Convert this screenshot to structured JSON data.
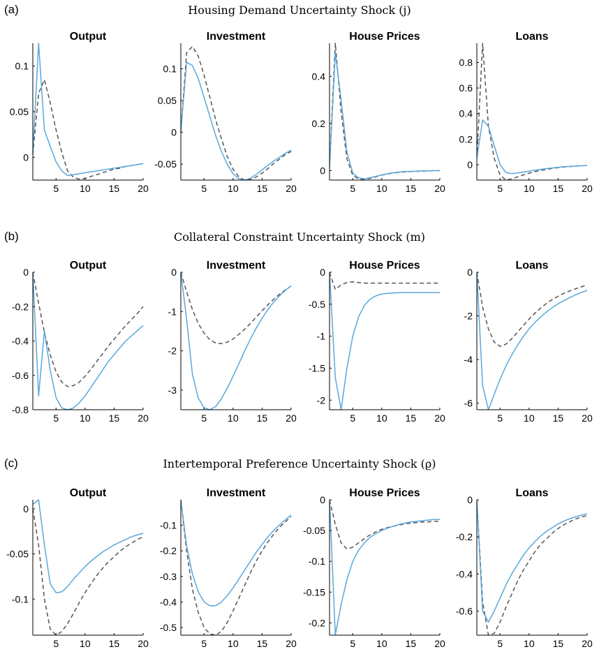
{
  "rows": [
    {
      "letter": "(a)",
      "title": "Housing Demand Uncertainty Shock (j)"
    },
    {
      "letter": "(b)",
      "title": "Collateral Constraint Uncertainty Shock (m)"
    },
    {
      "letter": "(c)",
      "title": "Intertemporal Preference Uncertainty Shock (ϱ)"
    }
  ],
  "colors": {
    "solid": "#5aa7da",
    "dashed": "#555555",
    "axis": "#000000"
  },
  "chart_data": [
    {
      "type": "line",
      "title": "Output",
      "xlim": [
        1,
        20
      ],
      "ylim": [
        -0.025,
        0.125
      ],
      "xticks": [
        5,
        10,
        15,
        20
      ],
      "yticks": [
        0,
        0.05,
        0.1
      ],
      "ytick_labels": [
        "0",
        "0.05",
        "0.1"
      ],
      "x": [
        1,
        2,
        3,
        4,
        5,
        6,
        7,
        8,
        9,
        10,
        11,
        12,
        13,
        14,
        15,
        16,
        17,
        18,
        19,
        20
      ],
      "series": [
        {
          "style": "solid",
          "values": [
            0.005,
            0.125,
            0.03,
            0.012,
            -0.005,
            -0.015,
            -0.02,
            -0.019,
            -0.018,
            -0.017,
            -0.016,
            -0.015,
            -0.014,
            -0.013,
            -0.012,
            -0.011,
            -0.01,
            -0.009,
            -0.008,
            -0.007
          ]
        },
        {
          "style": "dashed",
          "values": [
            0.003,
            0.07,
            0.085,
            0.06,
            0.03,
            0.005,
            -0.015,
            -0.022,
            -0.024,
            -0.023,
            -0.021,
            -0.019,
            -0.017,
            -0.015,
            -0.013,
            -0.012,
            -0.01,
            -0.009,
            -0.008,
            -0.007
          ]
        }
      ]
    },
    {
      "type": "line",
      "title": "Investment",
      "xlim": [
        1,
        20
      ],
      "ylim": [
        -0.075,
        0.14
      ],
      "xticks": [
        5,
        10,
        15,
        20
      ],
      "yticks": [
        -0.05,
        0,
        0.05,
        0.1
      ],
      "ytick_labels": [
        "-0.05",
        "0",
        "0.05",
        "0.1"
      ],
      "x": [
        1,
        2,
        3,
        4,
        5,
        6,
        7,
        8,
        9,
        10,
        11,
        12,
        13,
        14,
        15,
        16,
        17,
        18,
        19,
        20
      ],
      "series": [
        {
          "style": "solid",
          "values": [
            0.0,
            0.11,
            0.105,
            0.085,
            0.055,
            0.025,
            -0.005,
            -0.03,
            -0.05,
            -0.065,
            -0.073,
            -0.075,
            -0.072,
            -0.066,
            -0.059,
            -0.052,
            -0.045,
            -0.039,
            -0.033,
            -0.028
          ]
        },
        {
          "style": "dashed",
          "values": [
            0.0,
            0.125,
            0.135,
            0.12,
            0.09,
            0.055,
            0.02,
            -0.01,
            -0.038,
            -0.058,
            -0.07,
            -0.075,
            -0.074,
            -0.07,
            -0.064,
            -0.057,
            -0.049,
            -0.042,
            -0.035,
            -0.03
          ]
        }
      ]
    },
    {
      "type": "line",
      "title": "House Prices",
      "xlim": [
        1,
        20
      ],
      "ylim": [
        -0.04,
        0.54
      ],
      "xticks": [
        5,
        10,
        15,
        20
      ],
      "yticks": [
        0,
        0.2,
        0.4
      ],
      "ytick_labels": [
        "0",
        "0.2",
        "0.4"
      ],
      "x": [
        1,
        2,
        3,
        4,
        5,
        6,
        7,
        8,
        9,
        10,
        11,
        12,
        13,
        14,
        15,
        16,
        17,
        18,
        19,
        20
      ],
      "series": [
        {
          "style": "solid",
          "values": [
            0.01,
            0.5,
            0.3,
            0.08,
            -0.01,
            -0.03,
            -0.035,
            -0.03,
            -0.024,
            -0.018,
            -0.013,
            -0.009,
            -0.006,
            -0.004,
            -0.003,
            -0.002,
            -0.001,
            -0.001,
            0.0,
            0.0
          ]
        },
        {
          "style": "dashed",
          "values": [
            0.02,
            0.54,
            0.25,
            0.05,
            -0.02,
            -0.035,
            -0.037,
            -0.033,
            -0.026,
            -0.019,
            -0.014,
            -0.01,
            -0.007,
            -0.005,
            -0.004,
            -0.003,
            -0.002,
            -0.001,
            0.0,
            0.0
          ]
        }
      ]
    },
    {
      "type": "line",
      "title": "Loans",
      "xlim": [
        1,
        20
      ],
      "ylim": [
        -0.12,
        0.95
      ],
      "xticks": [
        5,
        10,
        15,
        20
      ],
      "yticks": [
        0,
        0.2,
        0.4,
        0.6,
        0.8
      ],
      "ytick_labels": [
        "0",
        "0.2",
        "0.4",
        "0.6",
        "0.8"
      ],
      "x": [
        1,
        2,
        3,
        4,
        5,
        6,
        7,
        8,
        9,
        10,
        11,
        12,
        13,
        14,
        15,
        16,
        17,
        18,
        19,
        20
      ],
      "series": [
        {
          "style": "solid",
          "values": [
            0.05,
            0.35,
            0.3,
            0.15,
            0.0,
            -0.06,
            -0.07,
            -0.065,
            -0.058,
            -0.05,
            -0.043,
            -0.036,
            -0.03,
            -0.025,
            -0.02,
            -0.016,
            -0.013,
            -0.01,
            -0.008,
            -0.006
          ]
        },
        {
          "style": "dashed",
          "values": [
            0.05,
            0.95,
            0.3,
            0.05,
            -0.08,
            -0.12,
            -0.11,
            -0.095,
            -0.08,
            -0.066,
            -0.054,
            -0.044,
            -0.036,
            -0.029,
            -0.023,
            -0.018,
            -0.014,
            -0.011,
            -0.008,
            -0.006
          ]
        }
      ]
    },
    {
      "type": "line",
      "title": "Output",
      "xlim": [
        1,
        20
      ],
      "ylim": [
        -0.8,
        0.0
      ],
      "xticks": [
        5,
        10,
        15,
        20
      ],
      "yticks": [
        -0.8,
        -0.6,
        -0.4,
        -0.2,
        0
      ],
      "ytick_labels": [
        "-0.8",
        "-0.6",
        "-0.4",
        "-0.2",
        "0"
      ],
      "x": [
        1,
        2,
        3,
        4,
        5,
        6,
        7,
        8,
        9,
        10,
        11,
        12,
        13,
        14,
        15,
        16,
        17,
        18,
        19,
        20
      ],
      "series": [
        {
          "style": "solid",
          "values": [
            0.0,
            -0.72,
            -0.34,
            -0.57,
            -0.73,
            -0.79,
            -0.8,
            -0.79,
            -0.76,
            -0.72,
            -0.67,
            -0.62,
            -0.57,
            -0.52,
            -0.48,
            -0.44,
            -0.4,
            -0.37,
            -0.34,
            -0.31
          ]
        },
        {
          "style": "dashed",
          "values": [
            0.0,
            -0.18,
            -0.35,
            -0.48,
            -0.58,
            -0.64,
            -0.665,
            -0.66,
            -0.64,
            -0.605,
            -0.565,
            -0.52,
            -0.475,
            -0.43,
            -0.39,
            -0.35,
            -0.31,
            -0.275,
            -0.24,
            -0.2
          ]
        }
      ]
    },
    {
      "type": "line",
      "title": "Investment",
      "xlim": [
        1,
        20
      ],
      "ylim": [
        -3.5,
        0.0
      ],
      "xticks": [
        5,
        10,
        15,
        20
      ],
      "yticks": [
        -3,
        -2,
        -1,
        0
      ],
      "ytick_labels": [
        "-3",
        "-2",
        "-1",
        "0"
      ],
      "x": [
        1,
        2,
        3,
        4,
        5,
        6,
        7,
        8,
        9,
        10,
        11,
        12,
        13,
        14,
        15,
        16,
        17,
        18,
        19,
        20
      ],
      "series": [
        {
          "style": "solid",
          "values": [
            0.0,
            -1.2,
            -2.6,
            -3.2,
            -3.45,
            -3.5,
            -3.42,
            -3.22,
            -2.95,
            -2.65,
            -2.33,
            -2.0,
            -1.7,
            -1.42,
            -1.17,
            -0.95,
            -0.76,
            -0.6,
            -0.46,
            -0.35
          ]
        },
        {
          "style": "dashed",
          "values": [
            0.0,
            -0.5,
            -0.95,
            -1.3,
            -1.55,
            -1.72,
            -1.8,
            -1.82,
            -1.78,
            -1.7,
            -1.58,
            -1.45,
            -1.3,
            -1.14,
            -0.98,
            -0.83,
            -0.69,
            -0.56,
            -0.45,
            -0.35
          ]
        }
      ]
    },
    {
      "type": "line",
      "title": "House Prices",
      "xlim": [
        1,
        20
      ],
      "ylim": [
        -2.15,
        0.0
      ],
      "xticks": [
        5,
        10,
        15,
        20
      ],
      "yticks": [
        -2,
        -1.5,
        -1,
        -0.5,
        0
      ],
      "ytick_labels": [
        "-2",
        "-1.5",
        "-1",
        "-0.5",
        "0"
      ],
      "x": [
        1,
        2,
        3,
        4,
        5,
        6,
        7,
        8,
        9,
        10,
        11,
        12,
        13,
        14,
        15,
        16,
        17,
        18,
        19,
        20
      ],
      "series": [
        {
          "style": "solid",
          "values": [
            0.0,
            -1.65,
            -2.15,
            -1.5,
            -1.0,
            -0.7,
            -0.52,
            -0.42,
            -0.37,
            -0.34,
            -0.33,
            -0.325,
            -0.32,
            -0.32,
            -0.32,
            -0.32,
            -0.32,
            -0.32,
            -0.32,
            -0.32
          ]
        },
        {
          "style": "dashed",
          "values": [
            0.0,
            -0.27,
            -0.2,
            -0.16,
            -0.15,
            -0.16,
            -0.17,
            -0.17,
            -0.17,
            -0.17,
            -0.17,
            -0.17,
            -0.17,
            -0.17,
            -0.17,
            -0.17,
            -0.17,
            -0.17,
            -0.17,
            -0.17
          ]
        }
      ]
    },
    {
      "type": "line",
      "title": "Loans",
      "xlim": [
        1,
        20
      ],
      "ylim": [
        -6.3,
        0.0
      ],
      "xticks": [
        5,
        10,
        15,
        20
      ],
      "yticks": [
        -6,
        -4,
        -2,
        0
      ],
      "ytick_labels": [
        "-6",
        "-4",
        "-2",
        "0"
      ],
      "x": [
        1,
        2,
        3,
        4,
        5,
        6,
        7,
        8,
        9,
        10,
        11,
        12,
        13,
        14,
        15,
        16,
        17,
        18,
        19,
        20
      ],
      "series": [
        {
          "style": "solid",
          "values": [
            0.0,
            -5.2,
            -6.3,
            -5.6,
            -4.9,
            -4.3,
            -3.8,
            -3.35,
            -2.95,
            -2.6,
            -2.3,
            -2.05,
            -1.82,
            -1.62,
            -1.45,
            -1.3,
            -1.16,
            -1.04,
            -0.93,
            -0.83
          ]
        },
        {
          "style": "dashed",
          "values": [
            0.0,
            -1.6,
            -2.6,
            -3.2,
            -3.4,
            -3.3,
            -3.05,
            -2.75,
            -2.45,
            -2.15,
            -1.88,
            -1.64,
            -1.43,
            -1.25,
            -1.1,
            -0.97,
            -0.86,
            -0.76,
            -0.67,
            -0.58
          ]
        }
      ]
    },
    {
      "type": "line",
      "title": "Output",
      "xlim": [
        1,
        20
      ],
      "ylim": [
        -0.14,
        0.01
      ],
      "xticks": [
        5,
        10,
        15,
        20
      ],
      "yticks": [
        -0.1,
        -0.05,
        0
      ],
      "ytick_labels": [
        "-0.1",
        "-0.05",
        "0"
      ],
      "x": [
        1,
        2,
        3,
        4,
        5,
        6,
        7,
        8,
        9,
        10,
        11,
        12,
        13,
        14,
        15,
        16,
        17,
        18,
        19,
        20
      ],
      "series": [
        {
          "style": "solid",
          "values": [
            0.005,
            0.01,
            -0.04,
            -0.083,
            -0.093,
            -0.092,
            -0.086,
            -0.078,
            -0.071,
            -0.064,
            -0.058,
            -0.053,
            -0.048,
            -0.044,
            -0.04,
            -0.037,
            -0.034,
            -0.031,
            -0.029,
            -0.027
          ]
        },
        {
          "style": "dashed",
          "values": [
            0.0,
            -0.04,
            -0.1,
            -0.133,
            -0.14,
            -0.136,
            -0.127,
            -0.116,
            -0.104,
            -0.093,
            -0.083,
            -0.074,
            -0.066,
            -0.059,
            -0.053,
            -0.047,
            -0.042,
            -0.038,
            -0.034,
            -0.031
          ]
        }
      ]
    },
    {
      "type": "line",
      "title": "Investment",
      "xlim": [
        1,
        20
      ],
      "ylim": [
        -0.53,
        0.0
      ],
      "xticks": [
        5,
        10,
        15,
        20
      ],
      "yticks": [
        -0.5,
        -0.4,
        -0.3,
        -0.2,
        -0.1
      ],
      "ytick_labels": [
        "-0.5",
        "-0.4",
        "-0.3",
        "-0.2",
        "-0.1"
      ],
      "x": [
        1,
        2,
        3,
        4,
        5,
        6,
        7,
        8,
        9,
        10,
        11,
        12,
        13,
        14,
        15,
        16,
        17,
        18,
        19,
        20
      ],
      "series": [
        {
          "style": "solid",
          "values": [
            0.0,
            -0.18,
            -0.29,
            -0.36,
            -0.4,
            -0.415,
            -0.415,
            -0.4,
            -0.375,
            -0.345,
            -0.31,
            -0.275,
            -0.24,
            -0.205,
            -0.175,
            -0.145,
            -0.12,
            -0.098,
            -0.078,
            -0.06
          ]
        },
        {
          "style": "dashed",
          "values": [
            0.0,
            -0.2,
            -0.35,
            -0.44,
            -0.5,
            -0.525,
            -0.53,
            -0.515,
            -0.48,
            -0.435,
            -0.385,
            -0.335,
            -0.285,
            -0.24,
            -0.2,
            -0.165,
            -0.135,
            -0.108,
            -0.086,
            -0.067
          ]
        }
      ]
    },
    {
      "type": "line",
      "title": "House Prices",
      "xlim": [
        1,
        20
      ],
      "ylim": [
        -0.22,
        0.0
      ],
      "xticks": [
        5,
        10,
        15,
        20
      ],
      "yticks": [
        -0.2,
        -0.15,
        -0.1,
        -0.05,
        0
      ],
      "ytick_labels": [
        "-0.2",
        "-0.15",
        "-0.1",
        "-0.05",
        "0"
      ],
      "x": [
        1,
        2,
        3,
        4,
        5,
        6,
        7,
        8,
        9,
        10,
        11,
        12,
        13,
        14,
        15,
        16,
        17,
        18,
        19,
        20
      ],
      "series": [
        {
          "style": "solid",
          "values": [
            0.0,
            -0.22,
            -0.17,
            -0.13,
            -0.1,
            -0.082,
            -0.07,
            -0.061,
            -0.055,
            -0.05,
            -0.046,
            -0.043,
            -0.04,
            -0.038,
            -0.036,
            -0.035,
            -0.034,
            -0.033,
            -0.032,
            -0.032
          ]
        },
        {
          "style": "dashed",
          "values": [
            0.0,
            -0.04,
            -0.07,
            -0.08,
            -0.077,
            -0.07,
            -0.063,
            -0.057,
            -0.052,
            -0.048,
            -0.045,
            -0.043,
            -0.041,
            -0.039,
            -0.038,
            -0.037,
            -0.036,
            -0.036,
            -0.035,
            -0.035
          ]
        }
      ]
    },
    {
      "type": "line",
      "title": "Loans",
      "xlim": [
        1,
        20
      ],
      "ylim": [
        -0.73,
        0.0
      ],
      "xticks": [
        5,
        10,
        15,
        20
      ],
      "yticks": [
        -0.6,
        -0.4,
        -0.2,
        0
      ],
      "ytick_labels": [
        "-0.6",
        "-0.4",
        "-0.2",
        "0"
      ],
      "x": [
        1,
        2,
        3,
        4,
        5,
        6,
        7,
        8,
        9,
        10,
        11,
        12,
        13,
        14,
        15,
        16,
        17,
        18,
        19,
        20
      ],
      "series": [
        {
          "style": "solid",
          "values": [
            0.0,
            -0.6,
            -0.66,
            -0.6,
            -0.53,
            -0.46,
            -0.4,
            -0.35,
            -0.3,
            -0.26,
            -0.225,
            -0.195,
            -0.17,
            -0.15,
            -0.13,
            -0.115,
            -0.102,
            -0.092,
            -0.083,
            -0.076
          ]
        },
        {
          "style": "dashed",
          "values": [
            0.0,
            -0.55,
            -0.73,
            -0.72,
            -0.66,
            -0.58,
            -0.51,
            -0.44,
            -0.38,
            -0.33,
            -0.28,
            -0.24,
            -0.21,
            -0.18,
            -0.155,
            -0.135,
            -0.118,
            -0.104,
            -0.093,
            -0.085
          ]
        }
      ]
    }
  ]
}
